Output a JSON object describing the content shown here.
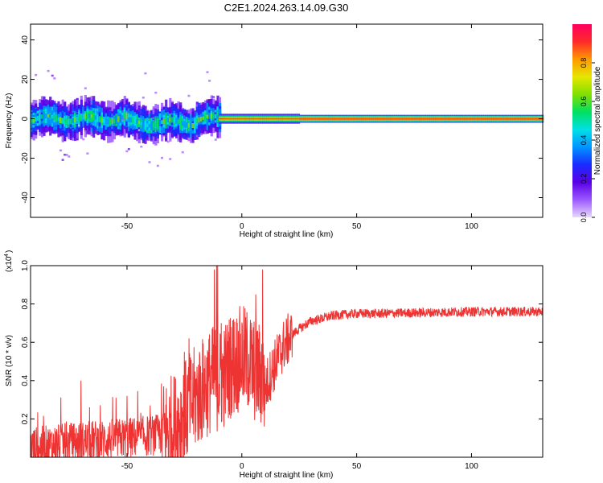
{
  "chart_data": [
    {
      "type": "heatmap",
      "title": "C2E1.2024.263.14.09.G30",
      "xlabel": "Height of straight line (km)",
      "ylabel": "Frequency (Hz)",
      "xlim": [
        -92,
        131
      ],
      "ylim": [
        -50,
        48
      ],
      "xticks": [
        -50,
        0,
        50,
        100
      ],
      "yticks": [
        -40,
        -20,
        0,
        20,
        40
      ],
      "colorbar": {
        "label": "Normalized spectral amplitude",
        "range": [
          0,
          1
        ],
        "ticks": [
          "0.0",
          "0.2",
          "0.4",
          "0.6",
          "0.8"
        ],
        "tick_values": [
          0.0,
          0.2,
          0.4,
          0.6,
          0.8
        ],
        "colormap": [
          "#e8d8ff",
          "#9b59ff",
          "#5a00e6",
          "#1a2bff",
          "#0095ff",
          "#00e0e6",
          "#00e060",
          "#7fe000",
          "#e6e600",
          "#ff9900",
          "#ff2a2a",
          "#ff0060"
        ]
      },
      "description_bands": [
        {
          "x_start": -92,
          "x_end": -10,
          "center_hz": 0,
          "spread_hz": 8,
          "peak": 0.55,
          "noisy": true
        },
        {
          "x_start": -10,
          "x_end": 25,
          "center_hz": 0,
          "spread_hz": 2.5,
          "peak": 0.9,
          "noisy": false
        },
        {
          "x_start": 25,
          "x_end": 131,
          "center_hz": 0,
          "spread_hz": 2,
          "peak": 1.0,
          "noisy": false
        }
      ]
    },
    {
      "type": "line",
      "xlabel": "Height of straight line (km)",
      "ylabel": "SNR (10 * v/v)",
      "scale_note": "(x10",
      "scale_exp": "4",
      "xlim": [
        -92,
        131
      ],
      "ylim": [
        0,
        1.0
      ],
      "xticks": [
        -50,
        0,
        50,
        100
      ],
      "yticks": [
        "0.2",
        "0.4",
        "0.6",
        "0.8",
        "1.0"
      ],
      "ytick_values": [
        0.2,
        0.4,
        0.6,
        0.8,
        1.0
      ],
      "series": [
        {
          "name": "SNR",
          "color": "#ee3333",
          "envelope_x": [
            -92,
            -70,
            -50,
            -35,
            -28,
            -22,
            -18,
            -15,
            -12,
            -10,
            -8,
            -5,
            -2,
            0,
            3,
            5,
            7,
            9,
            10,
            12,
            15,
            18,
            22,
            25,
            30,
            40,
            50,
            60,
            80,
            100,
            120,
            131
          ],
          "envelope_y": [
            0.05,
            0.08,
            0.1,
            0.12,
            0.18,
            0.28,
            0.34,
            0.38,
            0.42,
            0.4,
            0.42,
            0.48,
            0.5,
            0.52,
            0.5,
            0.46,
            0.44,
            0.42,
            0.35,
            0.42,
            0.5,
            0.58,
            0.64,
            0.67,
            0.71,
            0.74,
            0.75,
            0.75,
            0.755,
            0.76,
            0.76,
            0.76
          ],
          "spikes": [
            {
              "x": -11,
              "y": 1.0
            },
            {
              "x": -10.5,
              "y": 1.0
            },
            {
              "x": -12,
              "y": 0.98
            },
            {
              "x": -9,
              "y": 0.7
            },
            {
              "x": -23,
              "y": 0.62
            },
            {
              "x": -25,
              "y": 0.55
            },
            {
              "x": 9,
              "y": 0.98
            },
            {
              "x": 6,
              "y": 0.85
            },
            {
              "x": -70,
              "y": 0.4
            },
            {
              "x": -50,
              "y": 0.32
            }
          ]
        }
      ]
    }
  ]
}
